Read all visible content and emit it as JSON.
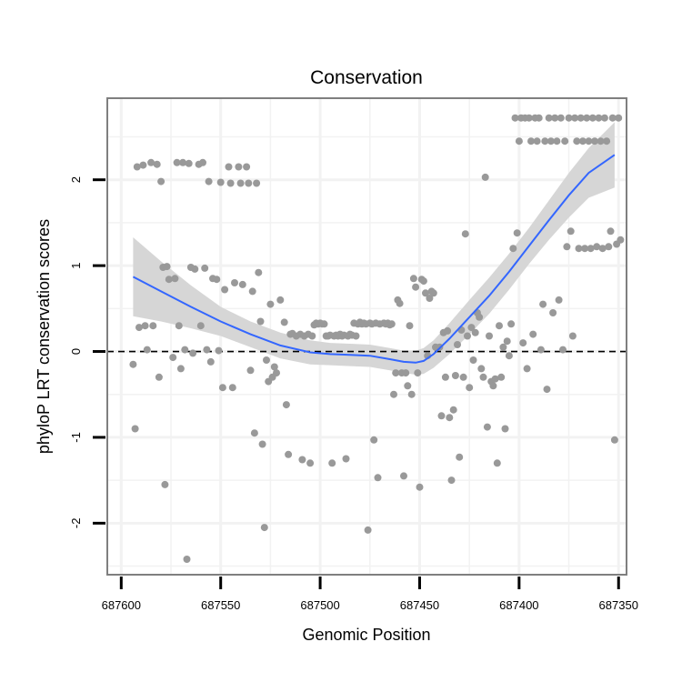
{
  "chart_data": {
    "type": "scatter",
    "title": "Conservation",
    "xlabel": "Genomic Position",
    "ylabel": "phyloP LRT conservation scores",
    "xlim": [
      687607,
      687346
    ],
    "ylim": [
      -2.6,
      2.95
    ],
    "x_reversed": true,
    "xticks": [
      687600,
      687550,
      687500,
      687450,
      687400,
      687350
    ],
    "xtick_labels": [
      "687600",
      "687550",
      "687500",
      "687450",
      "687400",
      "687350"
    ],
    "yticks": [
      2,
      1,
      0,
      -1,
      -2
    ],
    "ytick_labels": [
      "2",
      "1",
      "0",
      "-1",
      "-2"
    ],
    "reference_line": {
      "y": 0,
      "style": "dashed"
    },
    "colors": {
      "points": "#999999",
      "smooth": "#3366FF",
      "ribbon": "#D6D6D6",
      "grid": "#F2F2F2",
      "panel_border": "#7F7F7F",
      "reference_line": "#000000"
    },
    "series": [
      {
        "name": "phyloP LRT scores",
        "kind": "points",
        "points": [
          [
            687594,
            -0.15
          ],
          [
            687593,
            -0.9
          ],
          [
            687592,
            2.15
          ],
          [
            687591,
            0.28
          ],
          [
            687589,
            2.17
          ],
          [
            687588,
            0.3
          ],
          [
            687587,
            0.02
          ],
          [
            687585,
            2.2
          ],
          [
            687584,
            0.3
          ],
          [
            687582,
            2.18
          ],
          [
            687581,
            -0.3
          ],
          [
            687580,
            1.98
          ],
          [
            687579,
            0.98
          ],
          [
            687578,
            -1.55
          ],
          [
            687577,
            0.99
          ],
          [
            687576,
            0.84
          ],
          [
            687574,
            -0.07
          ],
          [
            687573,
            0.85
          ],
          [
            687572,
            2.2
          ],
          [
            687571,
            0.3
          ],
          [
            687570,
            -0.2
          ],
          [
            687569,
            2.2
          ],
          [
            687568,
            0.02
          ],
          [
            687567,
            -2.42
          ],
          [
            687566,
            2.19
          ],
          [
            687565,
            0.98
          ],
          [
            687564,
            -0.02
          ],
          [
            687563,
            0.96
          ],
          [
            687561,
            2.18
          ],
          [
            687560,
            0.3
          ],
          [
            687559,
            2.2
          ],
          [
            687558,
            0.97
          ],
          [
            687557,
            0.02
          ],
          [
            687556,
            1.98
          ],
          [
            687555,
            -0.12
          ],
          [
            687554,
            0.85
          ],
          [
            687552,
            0.84
          ],
          [
            687551,
            0.01
          ],
          [
            687550,
            1.97
          ],
          [
            687549,
            -0.42
          ],
          [
            687548,
            0.72
          ],
          [
            687546,
            2.15
          ],
          [
            687545,
            1.96
          ],
          [
            687544,
            -0.42
          ],
          [
            687543,
            0.8
          ],
          [
            687541,
            2.15
          ],
          [
            687540,
            1.96
          ],
          [
            687539,
            0.78
          ],
          [
            687537,
            2.15
          ],
          [
            687536,
            1.96
          ],
          [
            687535,
            -0.22
          ],
          [
            687534,
            0.7
          ],
          [
            687533,
            -0.95
          ],
          [
            687532,
            1.96
          ],
          [
            687531,
            0.92
          ],
          [
            687530,
            0.35
          ],
          [
            687529,
            -1.08
          ],
          [
            687528,
            -2.05
          ],
          [
            687527,
            -0.1
          ],
          [
            687526,
            -0.35
          ],
          [
            687525,
            0.55
          ],
          [
            687524,
            -0.3
          ],
          [
            687523,
            -0.18
          ],
          [
            687522,
            -0.25
          ],
          [
            687520,
            0.6
          ],
          [
            687518,
            0.34
          ],
          [
            687517,
            -0.62
          ],
          [
            687516,
            -1.2
          ],
          [
            687515,
            0.2
          ],
          [
            687514,
            0.21
          ],
          [
            687512,
            0.18
          ],
          [
            687510,
            0.2
          ],
          [
            687509,
            -1.26
          ],
          [
            687508,
            0.18
          ],
          [
            687506,
            0.2
          ],
          [
            687505,
            -1.3
          ],
          [
            687504,
            0.18
          ],
          [
            687503,
            0.31
          ],
          [
            687502,
            0.33
          ],
          [
            687501,
            0.32
          ],
          [
            687500,
            0.33
          ],
          [
            687499,
            0.32
          ],
          [
            687498,
            0.32
          ],
          [
            687497,
            0.18
          ],
          [
            687496,
            0.18
          ],
          [
            687495,
            0.19
          ],
          [
            687494,
            -1.3
          ],
          [
            687493,
            0.18
          ],
          [
            687492,
            0.19
          ],
          [
            687491,
            0.18
          ],
          [
            687490,
            0.2
          ],
          [
            687489,
            0.18
          ],
          [
            687488,
            0.19
          ],
          [
            687487,
            -1.25
          ],
          [
            687486,
            0.18
          ],
          [
            687485,
            0.2
          ],
          [
            687484,
            0.19
          ],
          [
            687483,
            0.33
          ],
          [
            687482,
            0.18
          ],
          [
            687481,
            0.32
          ],
          [
            687480,
            0.34
          ],
          [
            687479,
            0.32
          ],
          [
            687478,
            0.33
          ],
          [
            687477,
            0.32
          ],
          [
            687476,
            -2.08
          ],
          [
            687475,
            0.33
          ],
          [
            687474,
            0.32
          ],
          [
            687473,
            -1.03
          ],
          [
            687472,
            0.33
          ],
          [
            687471,
            -1.47
          ],
          [
            687470,
            0.32
          ],
          [
            687468,
            0.33
          ],
          [
            687467,
            0.32
          ],
          [
            687466,
            0.33
          ],
          [
            687465,
            0.31
          ],
          [
            687464,
            0.32
          ],
          [
            687463,
            -0.5
          ],
          [
            687462,
            -0.25
          ],
          [
            687461,
            0.6
          ],
          [
            687460,
            0.56
          ],
          [
            687459,
            -0.25
          ],
          [
            687458,
            -1.45
          ],
          [
            687457,
            -0.25
          ],
          [
            687456,
            -0.4
          ],
          [
            687455,
            0.3
          ],
          [
            687454,
            -0.5
          ],
          [
            687453,
            0.85
          ],
          [
            687452,
            0.75
          ],
          [
            687451,
            -0.25
          ],
          [
            687450,
            -1.58
          ],
          [
            687449,
            0.84
          ],
          [
            687448,
            0.82
          ],
          [
            687447,
            0.68
          ],
          [
            687446,
            -0.05
          ],
          [
            687445,
            0.62
          ],
          [
            687444,
            0.7
          ],
          [
            687443,
            0.68
          ],
          [
            687442,
            0.05
          ],
          [
            687440,
            0.05
          ],
          [
            687439,
            -0.75
          ],
          [
            687438,
            0.22
          ],
          [
            687437,
            -0.3
          ],
          [
            687436,
            0.24
          ],
          [
            687435,
            -0.77
          ],
          [
            687434,
            -1.5
          ],
          [
            687433,
            -0.68
          ],
          [
            687432,
            -0.28
          ],
          [
            687431,
            0.08
          ],
          [
            687430,
            -1.23
          ],
          [
            687429,
            0.25
          ],
          [
            687428,
            -0.3
          ],
          [
            687427,
            1.37
          ],
          [
            687426,
            0.18
          ],
          [
            687425,
            -0.42
          ],
          [
            687424,
            0.28
          ],
          [
            687423,
            -0.1
          ],
          [
            687422,
            0.22
          ],
          [
            687421,
            0.45
          ],
          [
            687420,
            0.4
          ],
          [
            687419,
            -0.2
          ],
          [
            687418,
            -0.3
          ],
          [
            687417,
            2.03
          ],
          [
            687416,
            -0.88
          ],
          [
            687415,
            0.18
          ],
          [
            687414,
            -0.35
          ],
          [
            687413,
            -0.4
          ],
          [
            687412,
            -0.32
          ],
          [
            687411,
            -1.3
          ],
          [
            687410,
            0.3
          ],
          [
            687409,
            -0.3
          ],
          [
            687408,
            0.05
          ],
          [
            687407,
            -0.9
          ],
          [
            687406,
            0.12
          ],
          [
            687405,
            -0.05
          ],
          [
            687404,
            0.32
          ],
          [
            687403,
            1.2
          ],
          [
            687402,
            2.72
          ],
          [
            687401,
            1.38
          ],
          [
            687400,
            2.45
          ],
          [
            687399,
            2.72
          ],
          [
            687398,
            0.1
          ],
          [
            687397,
            2.72
          ],
          [
            687396,
            -0.2
          ],
          [
            687395,
            2.72
          ],
          [
            687394,
            2.45
          ],
          [
            687393,
            0.2
          ],
          [
            687392,
            2.72
          ],
          [
            687391,
            2.45
          ],
          [
            687390,
            2.72
          ],
          [
            687389,
            0.02
          ],
          [
            687388,
            0.55
          ],
          [
            687387,
            2.45
          ],
          [
            687386,
            -0.44
          ],
          [
            687385,
            2.72
          ],
          [
            687384,
            2.45
          ],
          [
            687383,
            0.45
          ],
          [
            687382,
            2.72
          ],
          [
            687381,
            2.45
          ],
          [
            687380,
            0.6
          ],
          [
            687379,
            2.72
          ],
          [
            687378,
            0.02
          ],
          [
            687377,
            2.45
          ],
          [
            687376,
            1.22
          ],
          [
            687375,
            2.72
          ],
          [
            687374,
            1.4
          ],
          [
            687373,
            0.18
          ],
          [
            687372,
            2.72
          ],
          [
            687371,
            2.45
          ],
          [
            687370,
            1.2
          ],
          [
            687369,
            2.72
          ],
          [
            687368,
            2.45
          ],
          [
            687367,
            1.2
          ],
          [
            687366,
            2.72
          ],
          [
            687365,
            2.45
          ],
          [
            687364,
            1.2
          ],
          [
            687363,
            2.72
          ],
          [
            687362,
            2.45
          ],
          [
            687361,
            1.22
          ],
          [
            687360,
            2.72
          ],
          [
            687359,
            2.45
          ],
          [
            687358,
            1.2
          ],
          [
            687357,
            2.72
          ],
          [
            687356,
            2.45
          ],
          [
            687355,
            1.22
          ],
          [
            687354,
            1.4
          ],
          [
            687353,
            2.72
          ],
          [
            687352,
            -1.03
          ],
          [
            687351,
            1.25
          ],
          [
            687350,
            2.72
          ],
          [
            687349,
            1.3
          ]
        ]
      },
      {
        "name": "loess fit",
        "kind": "line",
        "points": [
          [
            687594,
            0.87
          ],
          [
            687580,
            0.7
          ],
          [
            687565,
            0.52
          ],
          [
            687550,
            0.35
          ],
          [
            687535,
            0.2
          ],
          [
            687520,
            0.07
          ],
          [
            687505,
            -0.01
          ],
          [
            687495,
            -0.03
          ],
          [
            687485,
            -0.04
          ],
          [
            687475,
            -0.05
          ],
          [
            687465,
            -0.09
          ],
          [
            687458,
            -0.12
          ],
          [
            687452,
            -0.13
          ],
          [
            687448,
            -0.11
          ],
          [
            687443,
            -0.03
          ],
          [
            687435,
            0.15
          ],
          [
            687425,
            0.4
          ],
          [
            687415,
            0.65
          ],
          [
            687405,
            0.93
          ],
          [
            687395,
            1.23
          ],
          [
            687385,
            1.53
          ],
          [
            687375,
            1.82
          ],
          [
            687365,
            2.08
          ],
          [
            687352,
            2.29
          ]
        ],
        "ci_upper": [
          [
            687594,
            1.33
          ],
          [
            687580,
            1.05
          ],
          [
            687565,
            0.77
          ],
          [
            687550,
            0.52
          ],
          [
            687535,
            0.35
          ],
          [
            687520,
            0.22
          ],
          [
            687505,
            0.13
          ],
          [
            687495,
            0.1
          ],
          [
            687485,
            0.09
          ],
          [
            687475,
            0.08
          ],
          [
            687465,
            0.04
          ],
          [
            687458,
            0.01
          ],
          [
            687452,
            0.01
          ],
          [
            687448,
            0.04
          ],
          [
            687443,
            0.13
          ],
          [
            687435,
            0.33
          ],
          [
            687425,
            0.6
          ],
          [
            687415,
            0.86
          ],
          [
            687405,
            1.14
          ],
          [
            687395,
            1.44
          ],
          [
            687385,
            1.76
          ],
          [
            687375,
            2.08
          ],
          [
            687365,
            2.37
          ],
          [
            687352,
            2.67
          ]
        ],
        "ci_lower": [
          [
            687594,
            0.41
          ],
          [
            687580,
            0.35
          ],
          [
            687565,
            0.27
          ],
          [
            687550,
            0.18
          ],
          [
            687535,
            0.05
          ],
          [
            687520,
            -0.08
          ],
          [
            687505,
            -0.15
          ],
          [
            687495,
            -0.16
          ],
          [
            687485,
            -0.17
          ],
          [
            687475,
            -0.18
          ],
          [
            687465,
            -0.22
          ],
          [
            687458,
            -0.25
          ],
          [
            687452,
            -0.27
          ],
          [
            687448,
            -0.26
          ],
          [
            687443,
            -0.19
          ],
          [
            687435,
            -0.03
          ],
          [
            687425,
            0.2
          ],
          [
            687415,
            0.44
          ],
          [
            687405,
            0.72
          ],
          [
            687395,
            1.02
          ],
          [
            687385,
            1.3
          ],
          [
            687375,
            1.56
          ],
          [
            687365,
            1.79
          ],
          [
            687352,
            1.91
          ]
        ]
      }
    ]
  }
}
